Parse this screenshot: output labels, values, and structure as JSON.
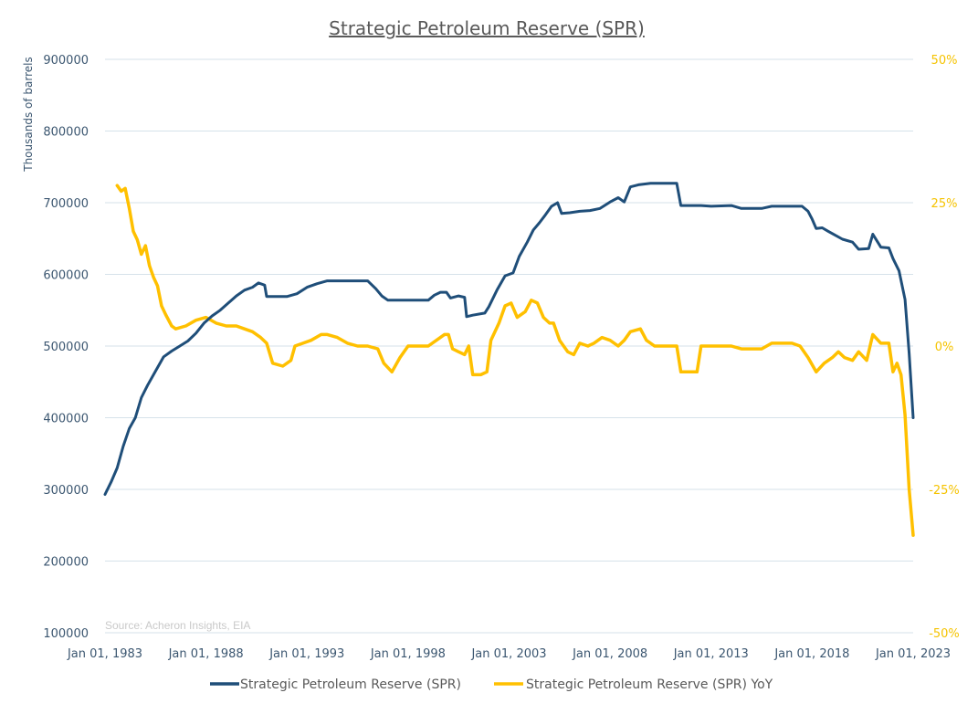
{
  "chart_data": {
    "type": "line",
    "title": "Strategic Petroleum Reserve (SPR)",
    "ylabel": "Thousands of barrels",
    "source": "Source: Acheron Insights, EIA",
    "x_ticks": [
      "Jan 01, 1983",
      "Jan 01, 1988",
      "Jan 01, 1993",
      "Jan 01, 1998",
      "Jan 01, 2003",
      "Jan 01, 2008",
      "Jan 01, 2013",
      "Jan 01, 2018",
      "Jan 01, 2023"
    ],
    "x_range": [
      1983.0,
      2023.0
    ],
    "y_left_ticks": [
      "100000",
      "200000",
      "300000",
      "400000",
      "500000",
      "600000",
      "700000",
      "800000",
      "900000"
    ],
    "y_left_range": [
      100000,
      900000
    ],
    "y_right_ticks": [
      "-50%",
      "-25%",
      "0%",
      "25%",
      "50%"
    ],
    "y_right_range": [
      -50,
      50
    ],
    "grid": true,
    "legend_position": "bottom",
    "series": [
      {
        "name": "Strategic Petroleum Reserve (SPR)",
        "axis": "left",
        "color": "#1f4e79",
        "points": [
          [
            1983.0,
            293000
          ],
          [
            1983.3,
            310000
          ],
          [
            1983.6,
            330000
          ],
          [
            1983.9,
            360000
          ],
          [
            1984.2,
            385000
          ],
          [
            1984.5,
            400000
          ],
          [
            1984.8,
            428000
          ],
          [
            1985.1,
            445000
          ],
          [
            1985.5,
            465000
          ],
          [
            1985.9,
            485000
          ],
          [
            1986.3,
            493000
          ],
          [
            1986.7,
            500000
          ],
          [
            1987.1,
            507000
          ],
          [
            1987.5,
            518000
          ],
          [
            1987.9,
            532000
          ],
          [
            1988.3,
            542000
          ],
          [
            1988.7,
            550000
          ],
          [
            1989.1,
            560000
          ],
          [
            1989.5,
            570000
          ],
          [
            1989.9,
            578000
          ],
          [
            1990.3,
            582000
          ],
          [
            1990.6,
            588000
          ],
          [
            1990.9,
            585000
          ],
          [
            1991.0,
            569000
          ],
          [
            1992.0,
            569000
          ],
          [
            1992.5,
            573000
          ],
          [
            1993.0,
            582000
          ],
          [
            1993.5,
            587000
          ],
          [
            1994.0,
            591000
          ],
          [
            1995.0,
            591000
          ],
          [
            1996.0,
            591000
          ],
          [
            1996.4,
            580000
          ],
          [
            1996.7,
            570000
          ],
          [
            1997.0,
            564000
          ],
          [
            1999.0,
            564000
          ],
          [
            1999.3,
            571000
          ],
          [
            1999.6,
            575000
          ],
          [
            1999.9,
            575000
          ],
          [
            2000.1,
            567000
          ],
          [
            2000.5,
            570000
          ],
          [
            2000.8,
            568000
          ],
          [
            2000.9,
            541000
          ],
          [
            2001.2,
            543000
          ],
          [
            2001.8,
            546000
          ],
          [
            2002.0,
            555000
          ],
          [
            2002.4,
            578000
          ],
          [
            2002.8,
            598000
          ],
          [
            2003.2,
            602000
          ],
          [
            2003.5,
            625000
          ],
          [
            2003.9,
            645000
          ],
          [
            2004.2,
            662000
          ],
          [
            2004.5,
            672000
          ],
          [
            2004.8,
            683000
          ],
          [
            2005.1,
            695000
          ],
          [
            2005.4,
            700000
          ],
          [
            2005.6,
            685000
          ],
          [
            2006.0,
            686000
          ],
          [
            2006.5,
            688000
          ],
          [
            2007.0,
            689000
          ],
          [
            2007.5,
            692000
          ],
          [
            2008.0,
            701000
          ],
          [
            2008.4,
            707000
          ],
          [
            2008.7,
            701000
          ],
          [
            2009.0,
            722000
          ],
          [
            2009.4,
            725000
          ],
          [
            2010.0,
            727000
          ],
          [
            2011.3,
            727000
          ],
          [
            2011.5,
            696000
          ],
          [
            2012.5,
            696000
          ],
          [
            2013.0,
            695000
          ],
          [
            2014.0,
            696000
          ],
          [
            2014.5,
            692000
          ],
          [
            2015.5,
            692000
          ],
          [
            2016.0,
            695000
          ],
          [
            2017.5,
            695000
          ],
          [
            2017.8,
            688000
          ],
          [
            2018.0,
            677000
          ],
          [
            2018.2,
            664000
          ],
          [
            2018.5,
            665000
          ],
          [
            2018.8,
            660000
          ],
          [
            2019.5,
            649000
          ],
          [
            2020.0,
            645000
          ],
          [
            2020.3,
            635000
          ],
          [
            2020.8,
            636000
          ],
          [
            2021.0,
            656000
          ],
          [
            2021.4,
            638000
          ],
          [
            2021.8,
            637000
          ],
          [
            2022.0,
            622000
          ],
          [
            2022.3,
            605000
          ],
          [
            2022.6,
            565000
          ],
          [
            2022.8,
            490000
          ],
          [
            2023.0,
            400000
          ]
        ]
      },
      {
        "name": "Strategic Petroleum Reserve (SPR) YoY",
        "axis": "right",
        "color": "#ffc000",
        "points": [
          [
            1983.6,
            28.0
          ],
          [
            1983.8,
            27.0
          ],
          [
            1984.0,
            27.5
          ],
          [
            1984.2,
            24.0
          ],
          [
            1984.4,
            20.0
          ],
          [
            1984.6,
            18.5
          ],
          [
            1984.8,
            16.0
          ],
          [
            1985.0,
            17.5
          ],
          [
            1985.2,
            14.0
          ],
          [
            1985.4,
            12.0
          ],
          [
            1985.6,
            10.5
          ],
          [
            1985.8,
            7.0
          ],
          [
            1986.0,
            5.5
          ],
          [
            1986.3,
            3.5
          ],
          [
            1986.5,
            3.0
          ],
          [
            1987.0,
            3.5
          ],
          [
            1987.5,
            4.5
          ],
          [
            1988.0,
            5.0
          ],
          [
            1988.5,
            4.0
          ],
          [
            1989.0,
            3.5
          ],
          [
            1989.5,
            3.5
          ],
          [
            1989.9,
            3.0
          ],
          [
            1990.3,
            2.5
          ],
          [
            1990.7,
            1.5
          ],
          [
            1991.0,
            0.5
          ],
          [
            1991.3,
            -3.0
          ],
          [
            1991.8,
            -3.5
          ],
          [
            1992.2,
            -2.5
          ],
          [
            1992.4,
            0.0
          ],
          [
            1992.8,
            0.5
          ],
          [
            1993.2,
            1.0
          ],
          [
            1993.7,
            2.0
          ],
          [
            1994.0,
            2.0
          ],
          [
            1994.5,
            1.5
          ],
          [
            1995.0,
            0.5
          ],
          [
            1995.5,
            0.0
          ],
          [
            1996.0,
            0.0
          ],
          [
            1996.5,
            -0.5
          ],
          [
            1996.8,
            -3.0
          ],
          [
            1997.2,
            -4.5
          ],
          [
            1997.6,
            -2.0
          ],
          [
            1998.0,
            0.0
          ],
          [
            1999.0,
            0.0
          ],
          [
            1999.4,
            1.0
          ],
          [
            1999.8,
            2.0
          ],
          [
            2000.0,
            2.0
          ],
          [
            2000.2,
            -0.5
          ],
          [
            2000.5,
            -1.0
          ],
          [
            2000.8,
            -1.5
          ],
          [
            2001.0,
            0.0
          ],
          [
            2001.2,
            -5.0
          ],
          [
            2001.6,
            -5.0
          ],
          [
            2001.9,
            -4.5
          ],
          [
            2002.1,
            1.0
          ],
          [
            2002.5,
            4.0
          ],
          [
            2002.8,
            7.0
          ],
          [
            2003.1,
            7.5
          ],
          [
            2003.4,
            5.0
          ],
          [
            2003.8,
            6.0
          ],
          [
            2004.1,
            8.0
          ],
          [
            2004.4,
            7.5
          ],
          [
            2004.7,
            5.0
          ],
          [
            2005.0,
            4.0
          ],
          [
            2005.2,
            4.0
          ],
          [
            2005.5,
            1.0
          ],
          [
            2005.9,
            -1.0
          ],
          [
            2006.2,
            -1.5
          ],
          [
            2006.5,
            0.5
          ],
          [
            2006.9,
            0.0
          ],
          [
            2007.2,
            0.5
          ],
          [
            2007.6,
            1.5
          ],
          [
            2008.0,
            1.0
          ],
          [
            2008.4,
            0.0
          ],
          [
            2008.7,
            1.0
          ],
          [
            2009.0,
            2.5
          ],
          [
            2009.5,
            3.0
          ],
          [
            2009.8,
            1.0
          ],
          [
            2010.2,
            0.0
          ],
          [
            2011.3,
            0.0
          ],
          [
            2011.5,
            -4.5
          ],
          [
            2012.3,
            -4.5
          ],
          [
            2012.5,
            0.0
          ],
          [
            2013.0,
            0.0
          ],
          [
            2014.0,
            0.0
          ],
          [
            2014.5,
            -0.5
          ],
          [
            2015.5,
            -0.5
          ],
          [
            2016.0,
            0.5
          ],
          [
            2017.0,
            0.5
          ],
          [
            2017.4,
            0.0
          ],
          [
            2017.8,
            -2.0
          ],
          [
            2018.2,
            -4.5
          ],
          [
            2018.6,
            -3.0
          ],
          [
            2019.0,
            -2.0
          ],
          [
            2019.3,
            -1.0
          ],
          [
            2019.6,
            -2.0
          ],
          [
            2020.0,
            -2.5
          ],
          [
            2020.3,
            -1.0
          ],
          [
            2020.7,
            -2.5
          ],
          [
            2021.0,
            2.0
          ],
          [
            2021.4,
            0.5
          ],
          [
            2021.8,
            0.5
          ],
          [
            2022.0,
            -4.5
          ],
          [
            2022.2,
            -3.0
          ],
          [
            2022.4,
            -5.0
          ],
          [
            2022.6,
            -12.0
          ],
          [
            2022.8,
            -25.0
          ],
          [
            2023.0,
            -33.0
          ]
        ]
      }
    ]
  }
}
